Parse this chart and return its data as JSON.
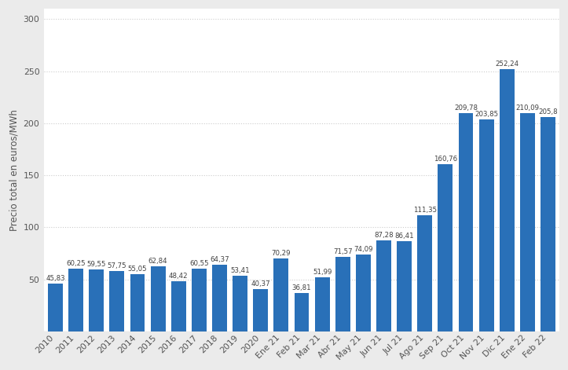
{
  "categories": [
    "2010",
    "2011",
    "2012",
    "2013",
    "2014",
    "2015",
    "2016",
    "2017",
    "2018",
    "2019",
    "2020",
    "Ene 21",
    "Feb 21",
    "Mar 21",
    "Abr 21",
    "May 21",
    "Jun 21",
    "Jul 21",
    "Ago 21",
    "Sep 21",
    "Oct 21",
    "Nov 21",
    "Dic 21",
    "Ene 22",
    "Feb 22"
  ],
  "values": [
    45.83,
    60.25,
    59.55,
    57.75,
    55.05,
    62.84,
    48.42,
    60.55,
    64.37,
    53.41,
    40.37,
    70.29,
    36.81,
    51.99,
    71.57,
    74.09,
    87.28,
    86.41,
    111.35,
    160.76,
    209.78,
    203.85,
    252.24,
    210.09,
    205.8
  ],
  "bar_color": "#2970b8",
  "ylabel": "Precio total en euros/MWh",
  "ylim": [
    0,
    310
  ],
  "yticks": [
    0,
    50,
    100,
    150,
    200,
    250,
    300
  ],
  "background_color": "#ebebeb",
  "plot_bg_color": "#ffffff",
  "grid_color": "#cccccc",
  "value_label_fontsize": 6.2,
  "ylabel_fontsize": 8.5,
  "tick_fontsize": 7.8
}
